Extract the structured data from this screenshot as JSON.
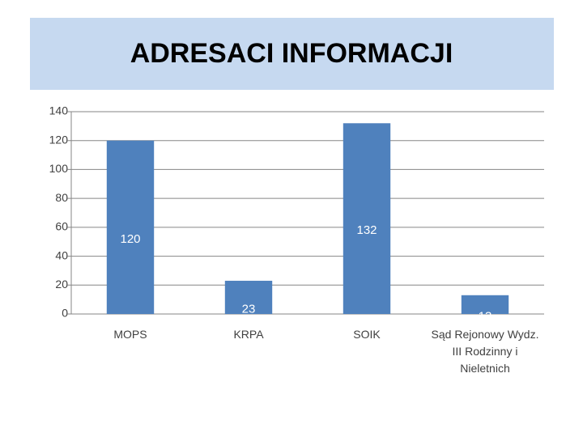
{
  "chart_data": {
    "type": "bar",
    "title": "ADRESACI INFORMACJI",
    "categories": [
      "MOPS",
      "KRPA",
      "SOIK",
      "Sąd Rejonowy Wydz. III Rodzinny i Nieletnich"
    ],
    "values": [
      120,
      23,
      132,
      13
    ],
    "color": "#4f81bd",
    "ylim": [
      0,
      140
    ],
    "yticks": [
      0,
      20,
      40,
      60,
      80,
      100,
      120,
      140
    ],
    "grid": true
  }
}
